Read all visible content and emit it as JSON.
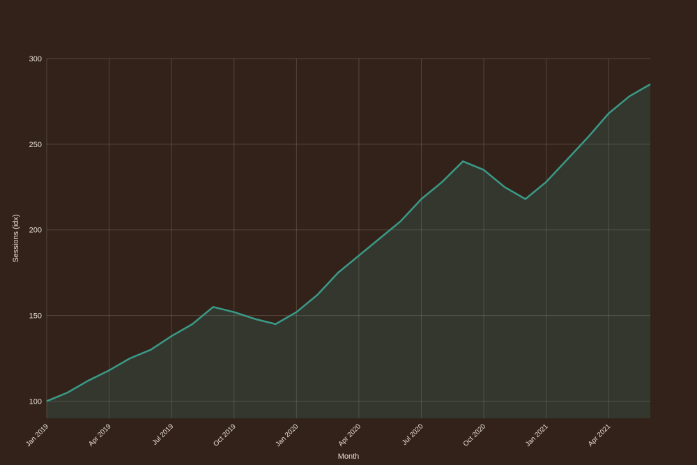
{
  "chart_data": {
    "type": "area",
    "x_label": "Month",
    "y_label": "Sessions (idx)",
    "categories": [
      "Jan 2019",
      null,
      null,
      "Apr 2019",
      null,
      null,
      "Jul 2019",
      null,
      null,
      "Oct 2019",
      null,
      null,
      "Jan 2020",
      null,
      null,
      "Apr 2020",
      null,
      null,
      "Jul 2020",
      null,
      null,
      "Oct 2020",
      null,
      null,
      "Jan 2021",
      null,
      null,
      "Apr 2021",
      null,
      null
    ],
    "series": [
      {
        "name": "Sessions",
        "color": "#3a9a88",
        "values": [
          100,
          105,
          112,
          118,
          125,
          130,
          138,
          145,
          155,
          152,
          148,
          145,
          152,
          162,
          175,
          185,
          195,
          205,
          218,
          228,
          240,
          235,
          225,
          218,
          228,
          241,
          254,
          268,
          278,
          285
        ]
      }
    ],
    "ylim": [
      90,
      300
    ],
    "yticks": [
      100,
      150,
      200,
      250,
      300
    ],
    "grid": true
  }
}
